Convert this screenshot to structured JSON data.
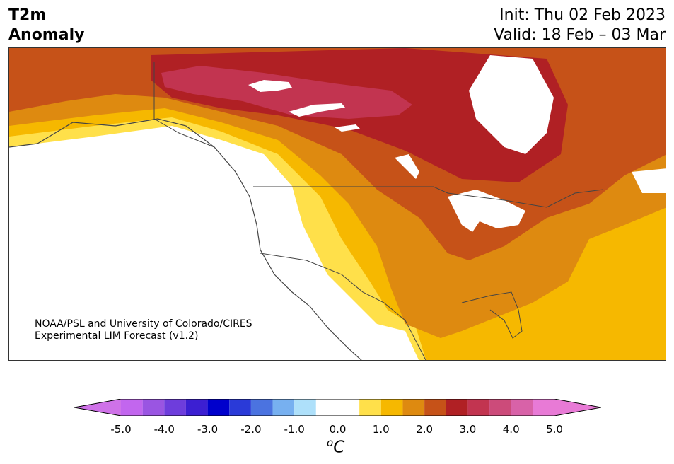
{
  "header": {
    "title_line1": "T2m",
    "title_line2": "Anomaly",
    "init": "Init: Thu 02 Feb 2023",
    "valid": "Valid: 18 Feb – 03 Mar"
  },
  "credit": {
    "line1": "NOAA/PSL and University of Colorado/CIRES",
    "line2": "Experimental LIM Forecast (v1.2)"
  },
  "colorbar": {
    "unit_base": "C",
    "unit_sup": "o",
    "bins": [
      {
        "lo": -5.5,
        "hi": -5.0,
        "color": "#cf72e8"
      },
      {
        "lo": -5.0,
        "hi": -4.5,
        "color": "#c266ee"
      },
      {
        "lo": -4.5,
        "hi": -4.0,
        "color": "#9a55e2"
      },
      {
        "lo": -4.0,
        "hi": -3.5,
        "color": "#6e3ddc"
      },
      {
        "lo": -3.5,
        "hi": -3.0,
        "color": "#3c1fd2"
      },
      {
        "lo": -3.0,
        "hi": -2.5,
        "color": "#0000cc"
      },
      {
        "lo": -2.5,
        "hi": -2.0,
        "color": "#2a3ad8"
      },
      {
        "lo": -2.0,
        "hi": -1.5,
        "color": "#4b73e0"
      },
      {
        "lo": -1.5,
        "hi": -1.0,
        "color": "#77b0f0"
      },
      {
        "lo": -1.0,
        "hi": -0.5,
        "color": "#aee0fa"
      },
      {
        "lo": -0.5,
        "hi": 0.5,
        "color": "#ffffff"
      },
      {
        "lo": 0.5,
        "hi": 1.0,
        "color": "#ffe04a"
      },
      {
        "lo": 1.0,
        "hi": 1.5,
        "color": "#f6b800"
      },
      {
        "lo": 1.5,
        "hi": 2.0,
        "color": "#de8a10"
      },
      {
        "lo": 2.0,
        "hi": 2.5,
        "color": "#c65218"
      },
      {
        "lo": 2.5,
        "hi": 3.0,
        "color": "#b02024"
      },
      {
        "lo": 3.0,
        "hi": 3.5,
        "color": "#c23450"
      },
      {
        "lo": 3.5,
        "hi": 4.0,
        "color": "#cc4b7a"
      },
      {
        "lo": 4.0,
        "hi": 4.5,
        "color": "#d862a8"
      },
      {
        "lo": 4.5,
        "hi": 5.0,
        "color": "#e87ad6"
      },
      {
        "lo": 5.0,
        "hi": 5.5,
        "color": "#e87ad6"
      }
    ],
    "ticks": [
      {
        "value": -5.0,
        "label": "-5.0"
      },
      {
        "value": -4.0,
        "label": "-4.0"
      },
      {
        "value": -3.0,
        "label": "-3.0"
      },
      {
        "value": -2.0,
        "label": "-2.0"
      },
      {
        "value": -1.0,
        "label": "-1.0"
      },
      {
        "value": 0.0,
        "label": "0.0"
      },
      {
        "value": 1.0,
        "label": "1.0"
      },
      {
        "value": 2.0,
        "label": "2.0"
      },
      {
        "value": 3.0,
        "label": "3.0"
      },
      {
        "value": 4.0,
        "label": "4.0"
      },
      {
        "value": 5.0,
        "label": "5.0"
      }
    ]
  },
  "map_colors": {
    "neutral": "#ffffff",
    "c05": "#ffe04a",
    "c10": "#f6b800",
    "c15": "#de8a10",
    "c20": "#c65218",
    "c25": "#b02024",
    "c30": "#c23450",
    "border": "#444444"
  }
}
